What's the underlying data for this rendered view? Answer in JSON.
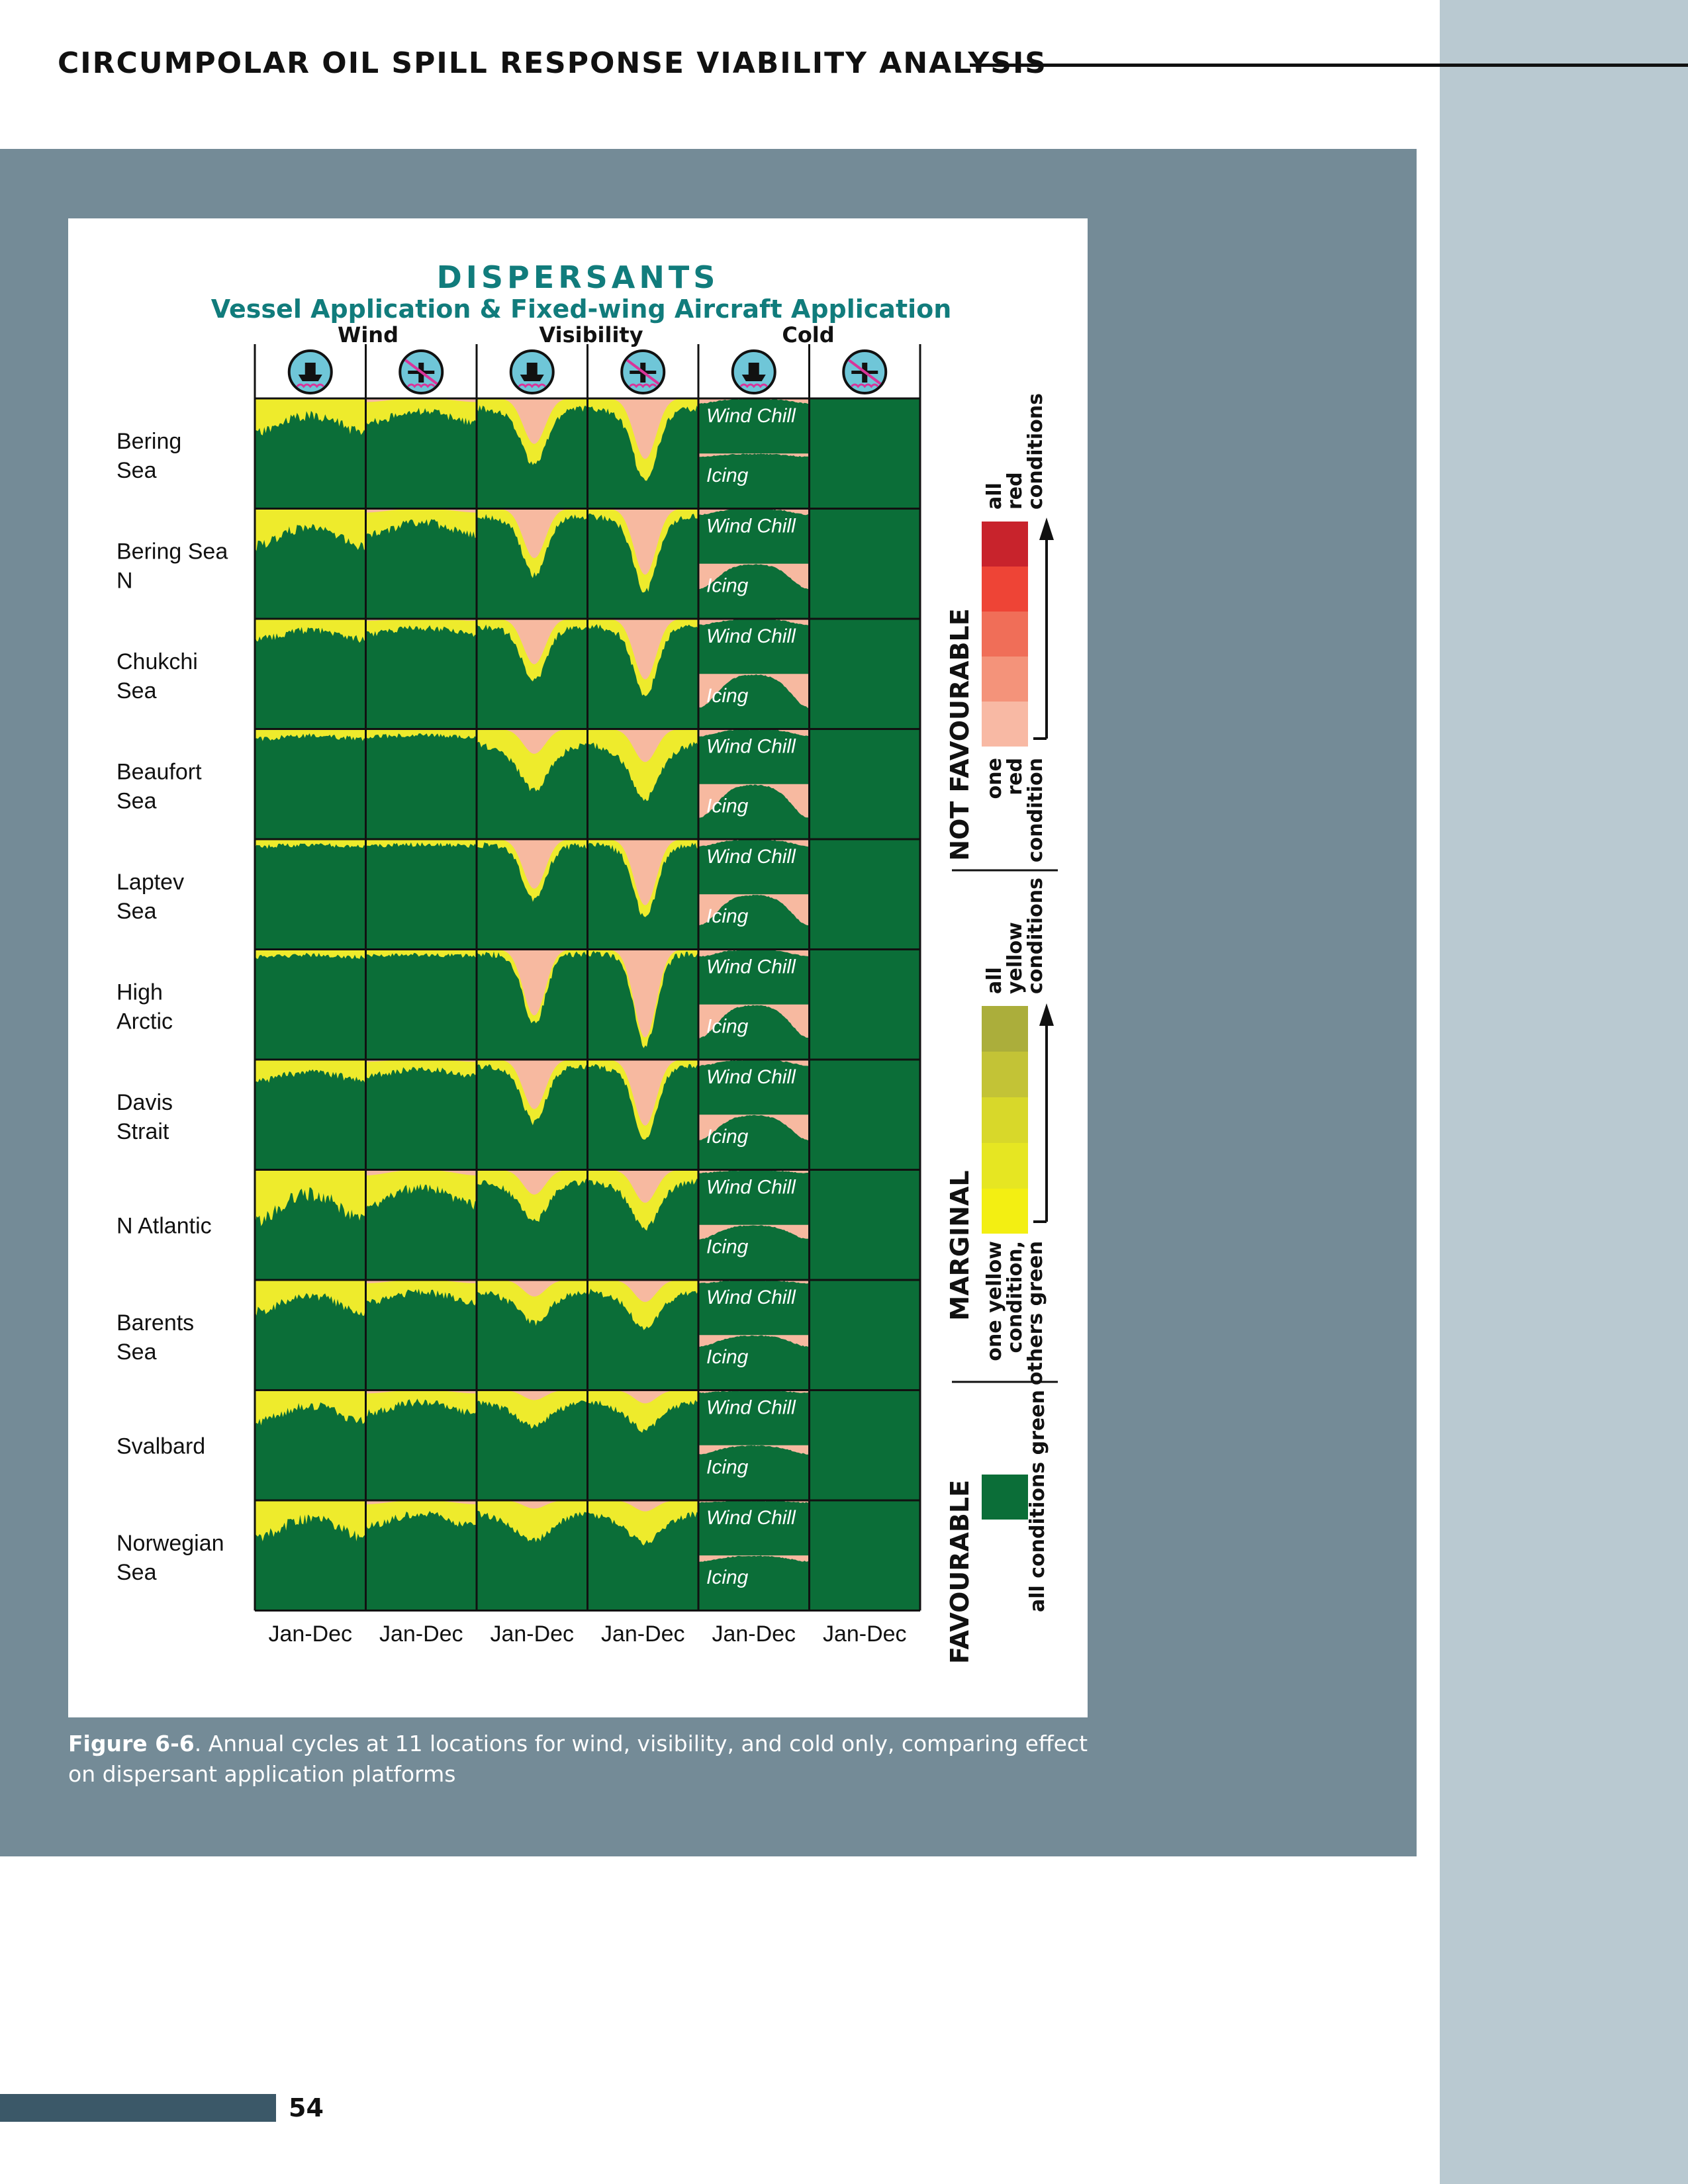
{
  "header": {
    "title": "CIRCUMPOLAR OIL SPILL RESPONSE VIABILITY ANALYSIS"
  },
  "figure": {
    "title": "DISPERSANTS",
    "subtitle": "Vessel Application & Fixed-wing Aircraft Application",
    "groups": [
      "Wind",
      "Visibility",
      "Cold"
    ],
    "column_icons": [
      "vessel-icon",
      "aircraft-icon",
      "vessel-icon",
      "aircraft-icon",
      "vessel-icon",
      "aircraft-icon"
    ],
    "x_labels": [
      "Jan-Dec",
      "Jan-Dec",
      "Jan-Dec",
      "Jan-Dec",
      "Jan-Dec",
      "Jan-Dec"
    ],
    "cold_labels": {
      "wind_chill": "Wind Chill",
      "icing": "Icing"
    },
    "locations": [
      {
        "line1": "Bering",
        "line2": "Sea"
      },
      {
        "line1": "Bering Sea",
        "line2": " N"
      },
      {
        "line1": "Chukchi",
        "line2": "Sea"
      },
      {
        "line1": "Beaufort",
        "line2": "Sea"
      },
      {
        "line1": "Laptev",
        "line2": "Sea"
      },
      {
        "line1": "High",
        "line2": "Arctic"
      },
      {
        "line1": "Davis",
        "line2": "Strait"
      },
      {
        "line1": "N Atlantic",
        "line2": ""
      },
      {
        "line1": "Barents",
        "line2": "Sea"
      },
      {
        "line1": "Svalbard",
        "line2": ""
      },
      {
        "line1": "Norwegian",
        "line2": "Sea"
      }
    ],
    "legend": {
      "not_favourable": {
        "heading": "NOT FAVOURABLE",
        "top": [
          "all",
          "red",
          "conditions"
        ],
        "bottom": [
          "one",
          "red",
          "condition"
        ]
      },
      "marginal": {
        "heading": "MARGINAL",
        "top": [
          "all",
          "yellow",
          "conditions"
        ],
        "bottom": [
          "one yellow",
          "condition,",
          "others green"
        ]
      },
      "favourable": {
        "heading": "FAVOURABLE",
        "bottom": [
          "all conditions green"
        ]
      }
    },
    "colors": {
      "green": "#0b6e38",
      "yellow": "#eeeb2c",
      "pink": "#f7b9a0",
      "title_teal": "#117c7c",
      "red_scale": [
        "#c8232c",
        "#ee4436",
        "#f06e58",
        "#f4937a",
        "#f8b9a4"
      ],
      "yellow_scale": [
        "#abae3b",
        "#c3c336",
        "#d8d82a",
        "#e6e622",
        "#f3ef12"
      ]
    }
  },
  "caption": {
    "label": "Figure 6-6",
    "text": ". Annual cycles at 11 locations for wind, visibility, and cold only, comparing effect on dispersant application platforms"
  },
  "page_number": "54"
}
